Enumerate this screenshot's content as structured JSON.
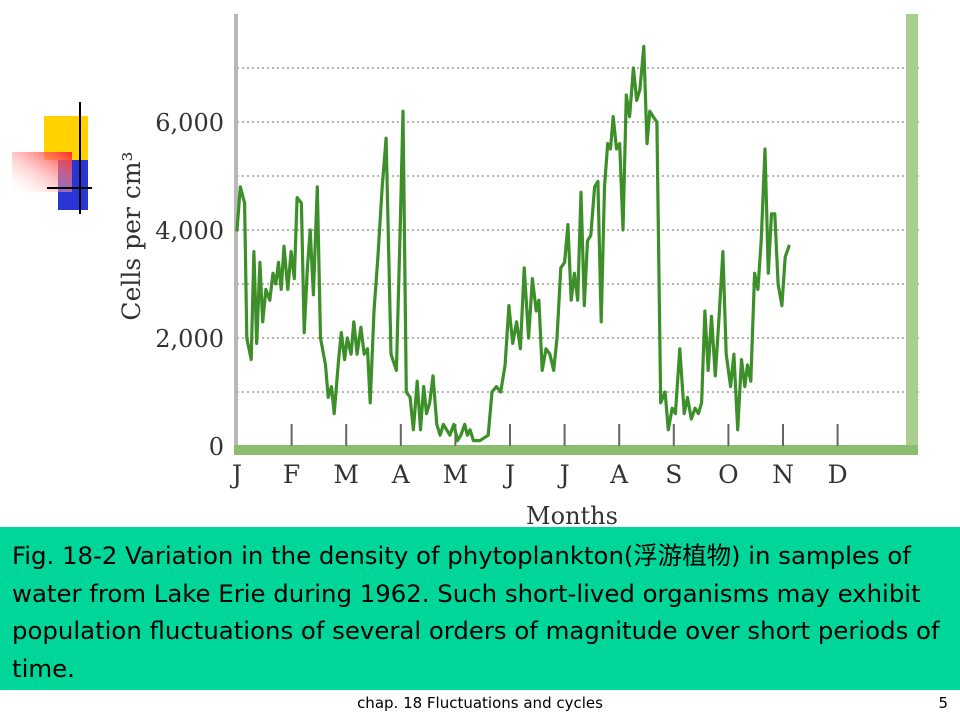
{
  "colors": {
    "line": "#3d8f2a",
    "axis_bar": "#8bbd6f",
    "right_bar": "#a8cf8d",
    "grid": "#9aa08f",
    "caption_bg": "#00d69a",
    "deco_yellow": "#ffd200",
    "deco_blue": "#2a35d6",
    "deco_red": "#ff3030"
  },
  "caption": {
    "text": "Fig. 18-2 Variation in the density of phytoplankton(浮游植物) in samples of water from Lake Erie during 1962.  Such short-lived organisms may exhibit population fluctuations of several orders of magnitude over short periods of time."
  },
  "footer": {
    "title": "chap. 18 Fluctuations and cycles",
    "page": "5"
  },
  "chart_data": {
    "type": "line",
    "xlabel": "Months",
    "ylabel": "Cells per cm³",
    "ylim": [
      0,
      7400
    ],
    "yticks": [
      {
        "value": 0,
        "label": "0"
      },
      {
        "value": 2000,
        "label": "2,000"
      },
      {
        "value": 4000,
        "label": "4,000"
      },
      {
        "value": 6000,
        "label": "6,000"
      }
    ],
    "gridlines": [
      1000,
      2000,
      3000,
      4000,
      5000,
      6000,
      7000
    ],
    "months": [
      "J",
      "F",
      "M",
      "A",
      "M",
      "J",
      "J",
      "A",
      "S",
      "O",
      "N",
      "D"
    ],
    "xlim": [
      0,
      12.5
    ],
    "series": [
      {
        "values": [
          [
            0.0,
            4000
          ],
          [
            0.06,
            4800
          ],
          [
            0.14,
            4500
          ],
          [
            0.18,
            2000
          ],
          [
            0.26,
            1600
          ],
          [
            0.31,
            3600
          ],
          [
            0.36,
            1900
          ],
          [
            0.42,
            3400
          ],
          [
            0.47,
            2300
          ],
          [
            0.53,
            2900
          ],
          [
            0.6,
            2700
          ],
          [
            0.66,
            3200
          ],
          [
            0.71,
            3000
          ],
          [
            0.76,
            3400
          ],
          [
            0.81,
            2900
          ],
          [
            0.86,
            3700
          ],
          [
            0.93,
            2900
          ],
          [
            0.99,
            3600
          ],
          [
            1.05,
            3100
          ],
          [
            1.1,
            4600
          ],
          [
            1.18,
            4500
          ],
          [
            1.23,
            2100
          ],
          [
            1.29,
            3300
          ],
          [
            1.34,
            4000
          ],
          [
            1.4,
            2800
          ],
          [
            1.47,
            4800
          ],
          [
            1.53,
            2000
          ],
          [
            1.62,
            1500
          ],
          [
            1.67,
            900
          ],
          [
            1.73,
            1100
          ],
          [
            1.78,
            600
          ],
          [
            1.86,
            1600
          ],
          [
            1.91,
            2100
          ],
          [
            1.97,
            1600
          ],
          [
            2.02,
            2000
          ],
          [
            2.09,
            1700
          ],
          [
            2.14,
            2300
          ],
          [
            2.2,
            1700
          ],
          [
            2.27,
            2200
          ],
          [
            2.33,
            1700
          ],
          [
            2.39,
            1800
          ],
          [
            2.44,
            800
          ],
          [
            2.51,
            2500
          ],
          [
            2.58,
            3500
          ],
          [
            2.66,
            4800
          ],
          [
            2.73,
            5700
          ],
          [
            2.82,
            1700
          ],
          [
            2.92,
            1400
          ],
          [
            2.99,
            4100
          ],
          [
            3.04,
            6200
          ],
          [
            3.1,
            1000
          ],
          [
            3.17,
            900
          ],
          [
            3.23,
            300
          ],
          [
            3.3,
            1200
          ],
          [
            3.36,
            300
          ],
          [
            3.42,
            1100
          ],
          [
            3.47,
            600
          ],
          [
            3.53,
            800
          ],
          [
            3.59,
            1300
          ],
          [
            3.66,
            400
          ],
          [
            3.72,
            200
          ],
          [
            3.78,
            400
          ],
          [
            3.84,
            300
          ],
          [
            3.9,
            200
          ],
          [
            3.97,
            400
          ],
          [
            4.04,
            100
          ],
          [
            4.1,
            200
          ],
          [
            4.17,
            400
          ],
          [
            4.22,
            200
          ],
          [
            4.27,
            300
          ],
          [
            4.33,
            100
          ],
          [
            4.45,
            100
          ],
          [
            4.6,
            200
          ],
          [
            4.67,
            1000
          ],
          [
            4.75,
            1100
          ],
          [
            4.83,
            1000
          ],
          [
            4.91,
            1500
          ],
          [
            4.98,
            2600
          ],
          [
            5.05,
            1900
          ],
          [
            5.12,
            2300
          ],
          [
            5.19,
            1800
          ],
          [
            5.26,
            3300
          ],
          [
            5.34,
            2000
          ],
          [
            5.41,
            3100
          ],
          [
            5.48,
            2500
          ],
          [
            5.53,
            2700
          ],
          [
            5.59,
            1400
          ],
          [
            5.66,
            1800
          ],
          [
            5.73,
            1700
          ],
          [
            5.8,
            1400
          ],
          [
            5.86,
            2000
          ],
          [
            5.93,
            3300
          ],
          [
            6.0,
            3400
          ],
          [
            6.06,
            4100
          ],
          [
            6.12,
            2700
          ],
          [
            6.18,
            3200
          ],
          [
            6.24,
            2700
          ],
          [
            6.3,
            4700
          ],
          [
            6.36,
            2600
          ],
          [
            6.42,
            3800
          ],
          [
            6.48,
            3900
          ],
          [
            6.55,
            4800
          ],
          [
            6.61,
            4900
          ],
          [
            6.67,
            2300
          ],
          [
            6.73,
            4800
          ],
          [
            6.79,
            5600
          ],
          [
            6.84,
            5500
          ],
          [
            6.89,
            6100
          ],
          [
            6.95,
            5500
          ],
          [
            7.01,
            5600
          ],
          [
            7.07,
            4000
          ],
          [
            7.13,
            6500
          ],
          [
            7.19,
            6100
          ],
          [
            7.26,
            7000
          ],
          [
            7.32,
            6400
          ],
          [
            7.38,
            6600
          ],
          [
            7.45,
            7400
          ],
          [
            7.51,
            5600
          ],
          [
            7.56,
            6200
          ],
          [
            7.62,
            6100
          ],
          [
            7.69,
            6000
          ],
          [
            7.76,
            800
          ],
          [
            7.84,
            1000
          ],
          [
            7.9,
            300
          ],
          [
            7.97,
            700
          ],
          [
            8.03,
            600
          ],
          [
            8.11,
            1800
          ],
          [
            8.19,
            600
          ],
          [
            8.25,
            900
          ],
          [
            8.32,
            500
          ],
          [
            8.39,
            700
          ],
          [
            8.45,
            600
          ],
          [
            8.51,
            800
          ],
          [
            8.57,
            2500
          ],
          [
            8.63,
            1400
          ],
          [
            8.69,
            2400
          ],
          [
            8.76,
            1300
          ],
          [
            8.83,
            2400
          ],
          [
            8.9,
            3600
          ],
          [
            8.96,
            1700
          ],
          [
            9.04,
            1100
          ],
          [
            9.1,
            1700
          ],
          [
            9.17,
            300
          ],
          [
            9.24,
            1600
          ],
          [
            9.3,
            1100
          ],
          [
            9.35,
            1500
          ],
          [
            9.41,
            1200
          ],
          [
            9.48,
            3200
          ],
          [
            9.54,
            2900
          ],
          [
            9.6,
            3800
          ],
          [
            9.67,
            5500
          ],
          [
            9.73,
            3200
          ],
          [
            9.79,
            4300
          ],
          [
            9.85,
            4300
          ],
          [
            9.91,
            3000
          ],
          [
            9.98,
            2600
          ],
          [
            10.04,
            3500
          ],
          [
            10.11,
            3700
          ]
        ]
      }
    ]
  }
}
